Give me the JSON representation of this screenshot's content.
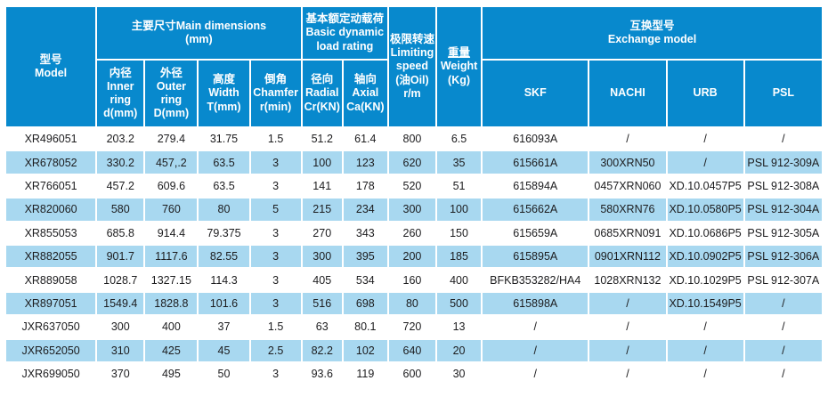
{
  "colors": {
    "header_bg": "#0889cd",
    "row_alt_bg": "#a8d8f0",
    "header_text": "#ffffff",
    "cell_text": "#1c1c1e"
  },
  "table": {
    "header": {
      "model": {
        "lines": [
          "型号",
          "Model"
        ]
      },
      "main_dimensions": {
        "lines": [
          "主要尺寸Main dimensions",
          "(mm)"
        ]
      },
      "load_rating": {
        "lines": [
          "基本额定动载荷",
          "Basic dynamic load rating"
        ]
      },
      "limiting_speed": {
        "lines": [
          "极限转速",
          "Limiting speed (油Oil) r/m"
        ]
      },
      "weight": {
        "lines": [
          "重量",
          "Weight (Kg)"
        ]
      },
      "exchange": {
        "lines": [
          "互换型号",
          "Exchange model"
        ]
      },
      "sub_columns": [
        {
          "zh": "内径",
          "en": "Inner ring d(mm)"
        },
        {
          "zh": "外径",
          "en": "Outer ring D(mm)"
        },
        {
          "zh": "高度",
          "en": "Width T(mm)"
        },
        {
          "zh": "倒角",
          "en": "Chamfer r(min)"
        },
        {
          "zh": "径向",
          "en": "Radial Cr(KN)"
        },
        {
          "zh": "轴向",
          "en": "Axial Ca(KN)"
        }
      ],
      "brands": [
        "SKF",
        "NACHI",
        "URB",
        "PSL"
      ]
    },
    "rows": [
      {
        "model": "XR496051",
        "values": [
          "203.2",
          "279.4",
          "31.75",
          "1.5",
          "51.2",
          "61.4",
          "800",
          "6.5",
          "616093A",
          "/",
          "/",
          "/"
        ]
      },
      {
        "model": "XR678052",
        "values": [
          "330.2",
          "457,.2",
          "63.5",
          "3",
          "100",
          "123",
          "620",
          "35",
          "615661A",
          "300XRN50",
          "/",
          "PSL 912-309A"
        ]
      },
      {
        "model": "XR766051",
        "values": [
          "457.2",
          "609.6",
          "63.5",
          "3",
          "141",
          "178",
          "520",
          "51",
          "615894A",
          "0457XRN060",
          "XD.10.0457P5",
          "PSL 912-308A"
        ]
      },
      {
        "model": "XR820060",
        "values": [
          "580",
          "760",
          "80",
          "5",
          "215",
          "234",
          "300",
          "100",
          "615662A",
          "580XRN76",
          "XD.10.0580P5",
          "PSL 912-304A"
        ]
      },
      {
        "model": "XR855053",
        "values": [
          "685.8",
          "914.4",
          "79.375",
          "3",
          "270",
          "343",
          "260",
          "150",
          "615659A",
          "0685XRN091",
          "XD.10.0686P5",
          "PSL 912-305A"
        ]
      },
      {
        "model": "XR882055",
        "values": [
          "901.7",
          "1117.6",
          "82.55",
          "3",
          "300",
          "395",
          "200",
          "185",
          "615895A",
          "0901XRN112",
          "XD.10.0902P5",
          "PSL 912-306A"
        ]
      },
      {
        "model": "XR889058",
        "values": [
          "1028.7",
          "1327.15",
          "114.3",
          "3",
          "405",
          "534",
          "160",
          "400",
          "BFKB353282/HA4",
          "1028XRN132",
          "XD.10.1029P5",
          "PSL 912-307A"
        ]
      },
      {
        "model": "XR897051",
        "values": [
          "1549.4",
          "1828.8",
          "101.6",
          "3",
          "516",
          "698",
          "80",
          "500",
          "615898A",
          "/",
          "XD.10.1549P5",
          "/"
        ]
      },
      {
        "model": "JXR637050",
        "values": [
          "300",
          "400",
          "37",
          "1.5",
          "63",
          "80.1",
          "720",
          "13",
          "/",
          "/",
          "/",
          "/"
        ]
      },
      {
        "model": "JXR652050",
        "values": [
          "310",
          "425",
          "45",
          "2.5",
          "82.2",
          "102",
          "640",
          "20",
          "/",
          "/",
          "/",
          "/"
        ]
      },
      {
        "model": "JXR699050",
        "values": [
          "370",
          "495",
          "50",
          "3",
          "93.6",
          "119",
          "600",
          "30",
          "/",
          "/",
          "/",
          "/"
        ]
      }
    ]
  }
}
